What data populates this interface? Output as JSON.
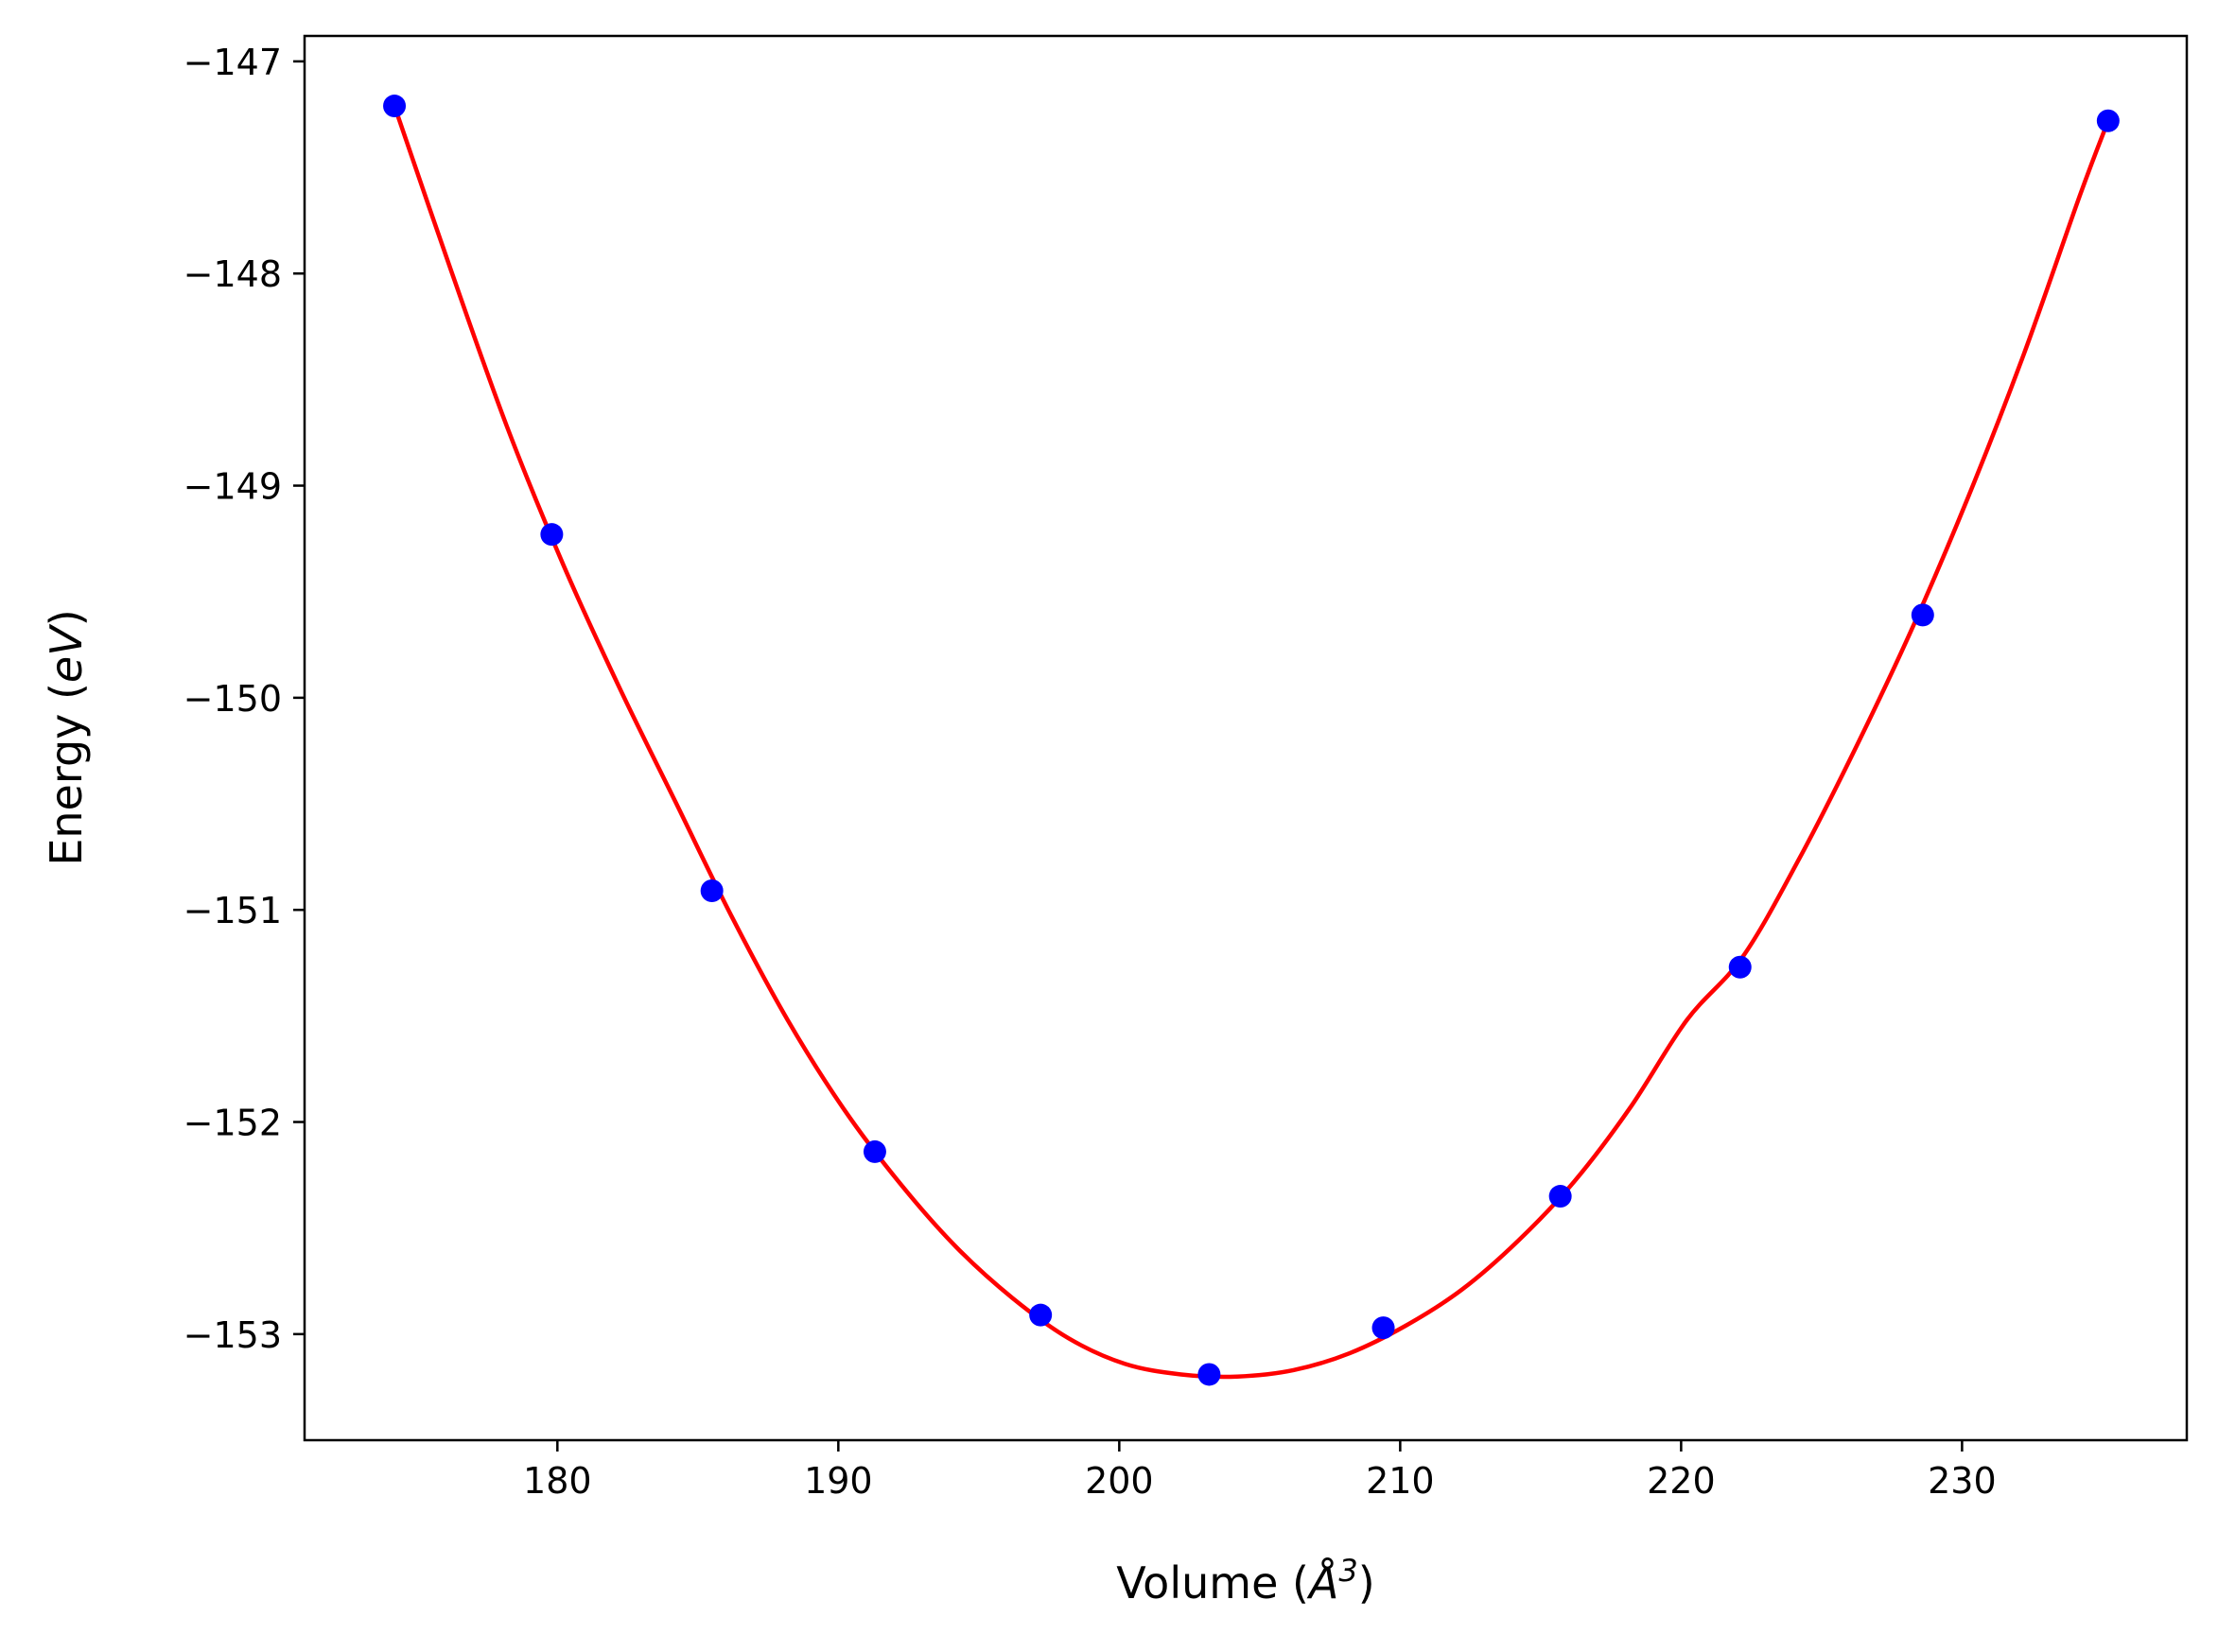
{
  "chart_data": {
    "type": "scatter",
    "title": "",
    "xlabel": "Volume (Å³)",
    "ylabel": "Energy (eV)",
    "xlabel_parts": {
      "prefix": "Volume (",
      "symbol": "Å",
      "superscript": "3",
      "suffix": ")"
    },
    "ylabel_parts": {
      "prefix": "Energy (",
      "symbol": "eV",
      "suffix": ")"
    },
    "xlim": [
      171,
      238
    ],
    "ylim": [
      -153.5,
      -146.88
    ],
    "x_ticks": [
      180,
      190,
      200,
      210,
      220,
      230
    ],
    "y_ticks": [
      -153,
      -152,
      -151,
      -150,
      -149,
      -148,
      -147
    ],
    "x_tick_labels": [
      "180",
      "190",
      "200",
      "210",
      "220",
      "230"
    ],
    "y_tick_labels": [
      "−153",
      "−152",
      "−151",
      "−150",
      "−149",
      "−148",
      "−147"
    ],
    "grid": false,
    "legend": false,
    "series": [
      {
        "kind": "points",
        "color": "#0000ff",
        "x": [
          174.2,
          179.8,
          185.5,
          191.3,
          197.2,
          203.2,
          209.4,
          215.7,
          222.1,
          228.6,
          235.2
        ],
        "y": [
          -147.21,
          -149.23,
          -150.91,
          -152.14,
          -152.91,
          -153.19,
          -152.97,
          -152.35,
          -151.27,
          -149.61,
          -147.28
        ]
      },
      {
        "kind": "fit_curve",
        "color": "#ff0000",
        "x": [
          174.2,
          176.2,
          178.2,
          180.2,
          182.2,
          184.2,
          186.2,
          188.2,
          190.2,
          192.2,
          194.2,
          196.2,
          198.2,
          200.2,
          202.2,
          204.2,
          206.2,
          208.2,
          210.2,
          212.2,
          214.2,
          216.2,
          218.2,
          220.2,
          222.2,
          224.2,
          226.2,
          228.2,
          230.2,
          232.2,
          234.2,
          235.2
        ],
        "y": [
          -147.21,
          -147.98,
          -148.72,
          -149.37,
          -149.95,
          -150.49,
          -151.03,
          -151.52,
          -151.94,
          -152.29,
          -152.59,
          -152.83,
          -153.02,
          -153.14,
          -153.19,
          -153.2,
          -153.17,
          -153.09,
          -152.96,
          -152.79,
          -152.56,
          -152.28,
          -151.93,
          -151.52,
          -151.22,
          -150.76,
          -150.24,
          -149.68,
          -149.06,
          -148.38,
          -147.63,
          -147.28
        ]
      }
    ]
  }
}
